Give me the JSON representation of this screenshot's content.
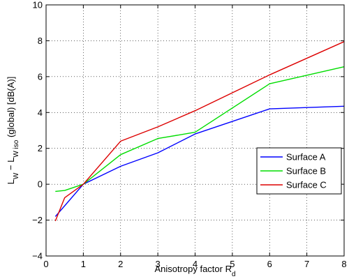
{
  "chart_data": {
    "type": "line",
    "title": "",
    "xlabel": {
      "main": "Anisotropy factor R",
      "sub": "d"
    },
    "ylabel": {
      "p1": "L",
      "s1": "W",
      "p2": " − L",
      "s2": "W iso",
      "p3": " (global) [dB(A)]"
    },
    "xlim": [
      0,
      8
    ],
    "ylim": [
      -4,
      10
    ],
    "xticks": [
      0,
      1,
      2,
      3,
      4,
      5,
      6,
      7,
      8
    ],
    "yticks": [
      -4,
      -2,
      0,
      2,
      4,
      6,
      8,
      10
    ],
    "xtick_labels": [
      "0",
      "1",
      "2",
      "3",
      "4",
      "5",
      "6",
      "7",
      "8"
    ],
    "ytick_labels": [
      "−4",
      "−2",
      "0",
      "2",
      "4",
      "6",
      "8",
      "10"
    ],
    "grid": true,
    "legend_position": "right",
    "series": [
      {
        "name": "Surface A",
        "color": "#0000ff",
        "x": [
          0.25,
          0.5,
          1,
          2,
          3,
          4,
          6,
          8
        ],
        "y": [
          -1.8,
          -1.2,
          0,
          1.0,
          1.75,
          2.8,
          4.2,
          4.35
        ]
      },
      {
        "name": "Surface B",
        "color": "#00dd00",
        "x": [
          0.25,
          0.5,
          1,
          2,
          3,
          4,
          6,
          8
        ],
        "y": [
          -0.4,
          -0.35,
          0,
          1.65,
          2.55,
          2.9,
          5.6,
          6.55
        ]
      },
      {
        "name": "Surface C",
        "color": "#dd0000",
        "x": [
          0.25,
          0.5,
          1,
          2,
          3,
          4,
          6,
          8
        ],
        "y": [
          -2.05,
          -0.75,
          0,
          2.4,
          3.2,
          4.1,
          6.1,
          7.95
        ]
      }
    ]
  }
}
